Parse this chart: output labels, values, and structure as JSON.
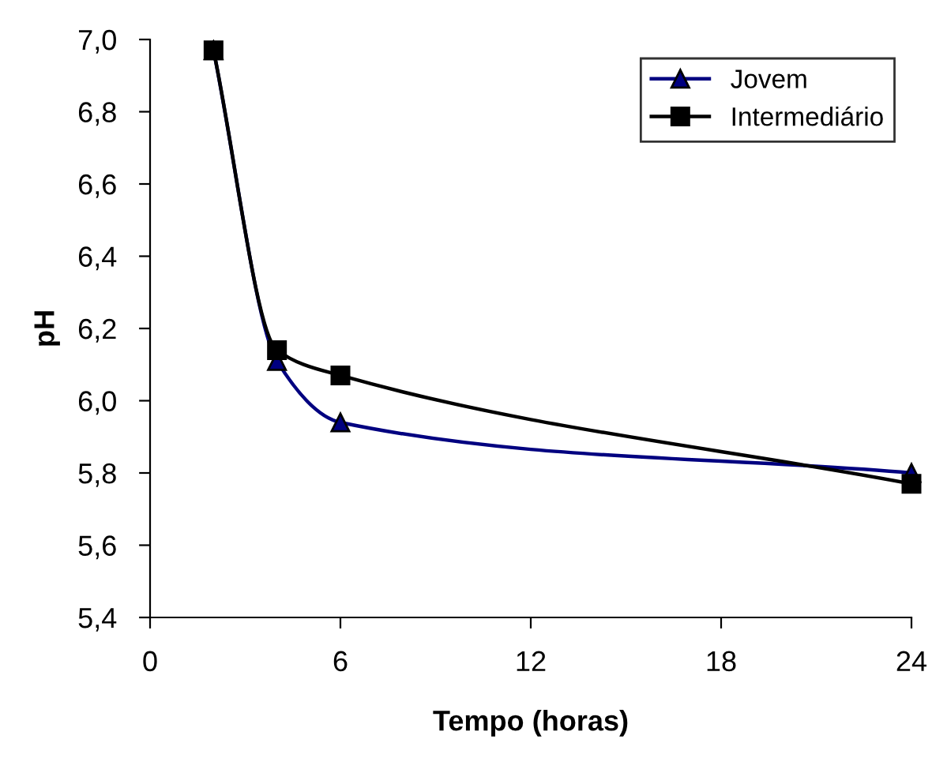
{
  "chart_data": {
    "type": "line",
    "xlabel": "Tempo (horas)",
    "ylabel": "pH",
    "x": [
      2,
      4,
      6,
      24
    ],
    "series": [
      {
        "name": "Jovem",
        "color": "#000080",
        "marker": "triangle",
        "values": [
          6.97,
          6.11,
          5.94,
          5.8
        ]
      },
      {
        "name": "Intermediário",
        "color": "#000000",
        "marker": "square",
        "values": [
          6.97,
          6.14,
          6.07,
          5.77
        ]
      }
    ],
    "xlim": [
      0,
      24
    ],
    "xticks": [
      0,
      6,
      12,
      18,
      24
    ],
    "ylim": [
      5.4,
      7.0
    ],
    "yticks": [
      {
        "value": 5.4,
        "label": "5,4"
      },
      {
        "value": 5.6,
        "label": "5,6"
      },
      {
        "value": 5.8,
        "label": "5,8"
      },
      {
        "value": 6.0,
        "label": "6,0"
      },
      {
        "value": 6.2,
        "label": "6,2"
      },
      {
        "value": 6.4,
        "label": "6,4"
      },
      {
        "value": 6.6,
        "label": "6,6"
      },
      {
        "value": 6.8,
        "label": "6,8"
      },
      {
        "value": 7.0,
        "label": "7,0"
      }
    ],
    "grid": false,
    "legend": "top right",
    "line_style": "solid"
  }
}
